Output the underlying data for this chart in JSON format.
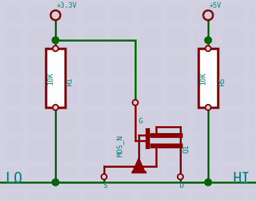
{
  "bg_color": "#d0d0e0",
  "dot_color": "#b8b8cc",
  "wire_color": "#006600",
  "component_color": "#880000",
  "text_color": "#008080",
  "label_lo": "LO",
  "label_hi": "HI",
  "label_vcc1": "+3.3V",
  "label_vcc2": "+5V",
  "label_r1": "10K",
  "label_r1_name": "R1",
  "label_r5": "10K",
  "label_r5_name": "R5",
  "label_mos": "MOS_N",
  "label_q1": "Q1",
  "label_g": "G",
  "label_s": "S",
  "label_d": "D",
  "figw": 3.69,
  "figh": 2.9,
  "dpi": 100
}
